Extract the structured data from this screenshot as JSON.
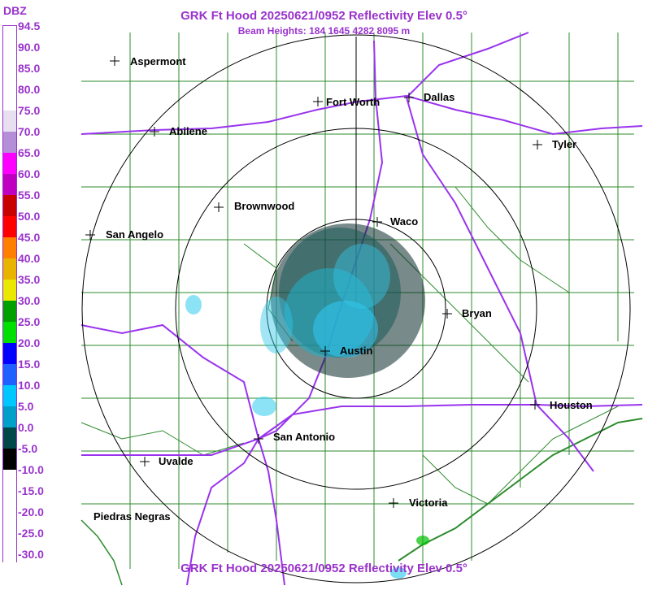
{
  "header": {
    "title": "GRK Ft Hood 20250621/0952 Reflectivity Elev 0.5°",
    "beam_heights": "Beam Heights: 184 1645 4282 8095 m"
  },
  "footer": {
    "title": "GRK Ft Hood 20250621/0952 Reflectivity Elev 0.5°"
  },
  "legend": {
    "unit": "DBZ",
    "ticks": [
      "94.5",
      "90.0",
      "85.0",
      "80.0",
      "75.0",
      "70.0",
      "65.0",
      "60.0",
      "55.0",
      "50.0",
      "45.0",
      "40.0",
      "35.0",
      "30.0",
      "25.0",
      "20.0",
      "15.0",
      "10.0",
      "5.0",
      "0.0",
      "-5.0",
      "-10.0",
      "-15.0",
      "-20.0",
      "-25.0",
      "-30.0"
    ],
    "colors": [
      "#ffffff",
      "#ffffff",
      "#ffffff",
      "#ffffff",
      "#e8e0f0",
      "#b48fd8",
      "#ff00ff",
      "#c000c0",
      "#c80000",
      "#ff0000",
      "#ff8000",
      "#e8b400",
      "#e8e800",
      "#00a000",
      "#00e000",
      "#0000ff",
      "#2060ff",
      "#00c8ff",
      "#00a0c8",
      "#004848",
      "#000000",
      "#ffffff",
      "#ffffff",
      "#ffffff",
      "#ffffff",
      "#ffffff"
    ]
  },
  "cities": [
    {
      "name": "Aspermont"
    },
    {
      "name": "Fort Worth"
    },
    {
      "name": "Dallas"
    },
    {
      "name": "Abilene"
    },
    {
      "name": "Tyler"
    },
    {
      "name": "Brownwood"
    },
    {
      "name": "Waco"
    },
    {
      "name": "San Angelo"
    },
    {
      "name": "Bryan"
    },
    {
      "name": "Austin"
    },
    {
      "name": "Houston"
    },
    {
      "name": "San Antonio"
    },
    {
      "name": "Uvalde"
    },
    {
      "name": "Victoria"
    },
    {
      "name": "Piedras Negras"
    }
  ]
}
